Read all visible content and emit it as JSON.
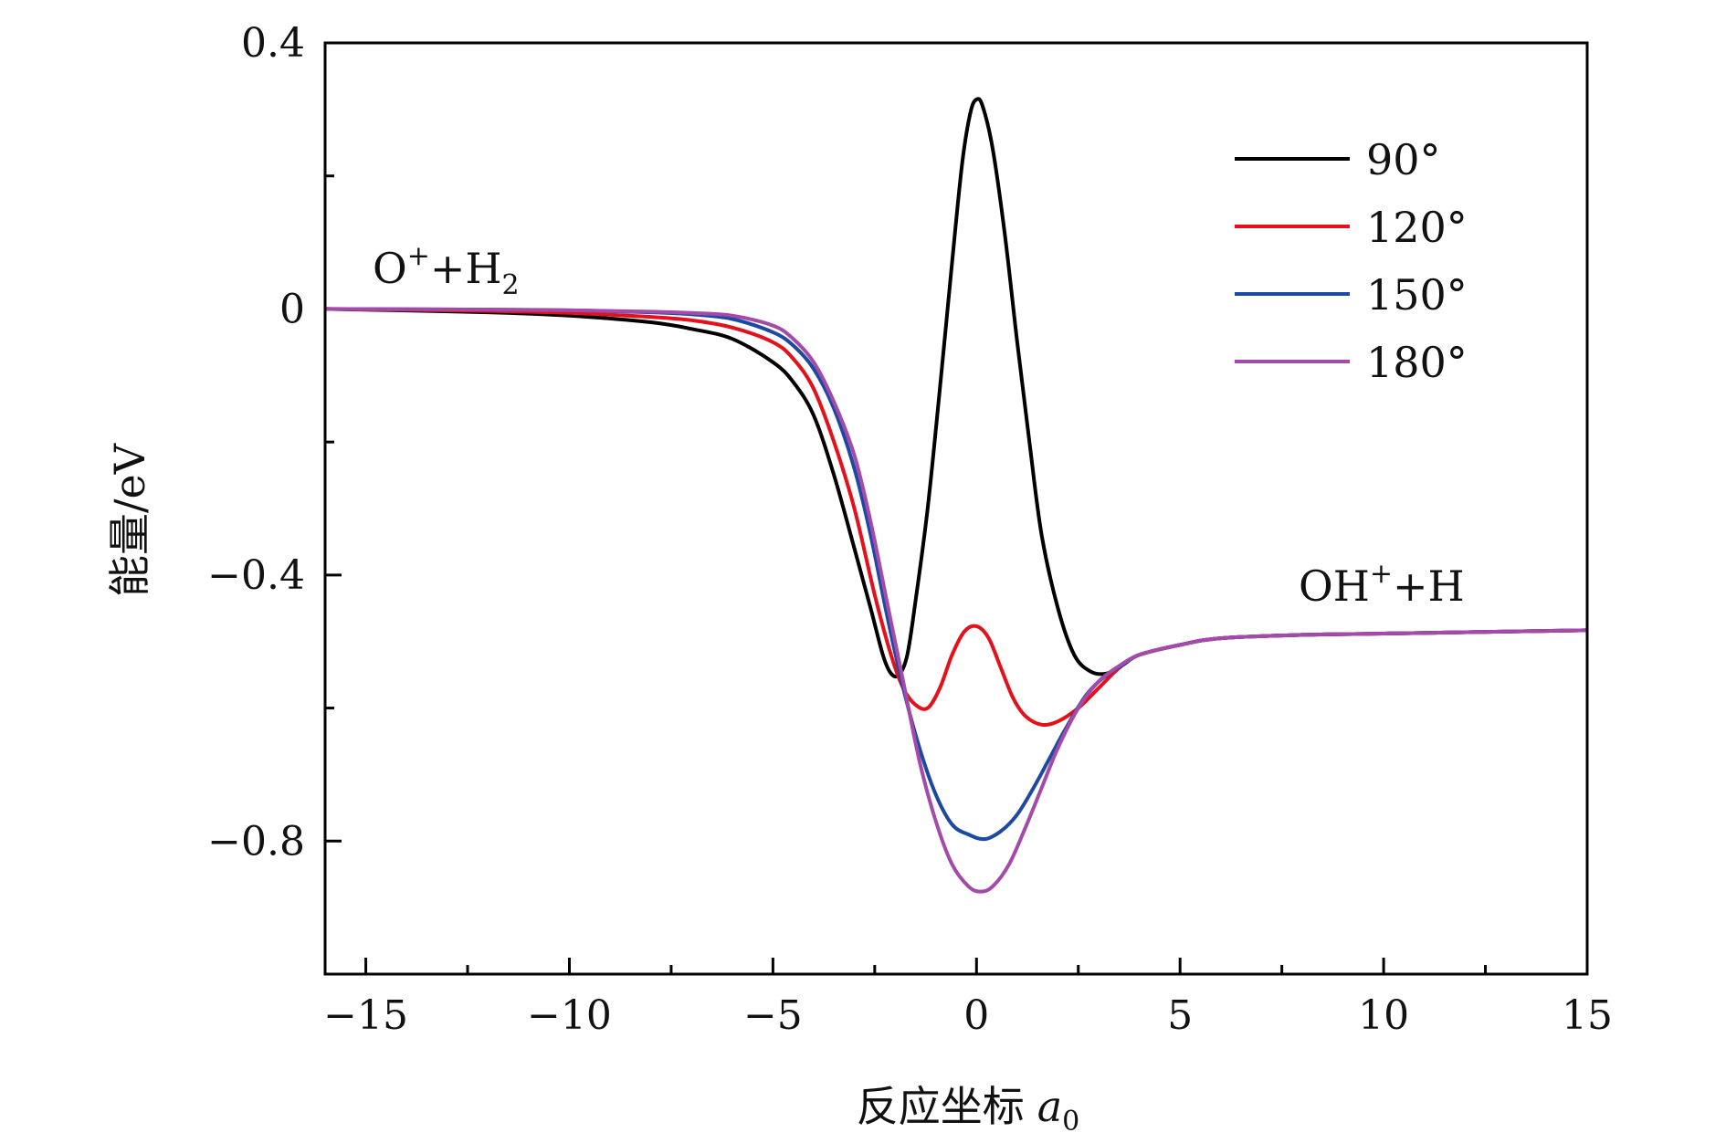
{
  "chart_data": {
    "type": "line",
    "xlabel": "反应坐标",
    "xlabel_unit": "a",
    "xlabel_unit_sub": "0",
    "ylabel": "能量/eV",
    "xlim": [
      -16,
      15
    ],
    "ylim": [
      -1.0,
      0.4
    ],
    "xticks": [
      -15,
      -10,
      -5,
      0,
      5,
      10,
      15
    ],
    "xtick_labels": [
      "−15",
      "−10",
      "−5",
      "0",
      "5",
      "10",
      "15"
    ],
    "yticks": [
      -0.8,
      -0.4,
      0,
      0.4
    ],
    "ytick_labels": [
      "−0.8",
      "−0.4",
      "0",
      "0.4"
    ],
    "grid": false,
    "legend_position": "top-right",
    "annotations": {
      "left": {
        "main": "O",
        "sup": "+",
        "mid": "+H",
        "sub": "2"
      },
      "right": {
        "main": "OH",
        "sup": "+",
        "mid": "+H"
      }
    },
    "series": [
      {
        "name": "90°",
        "color": "#000000",
        "points": [
          [
            -16,
            0
          ],
          [
            -12,
            -0.005
          ],
          [
            -10,
            -0.01
          ],
          [
            -8,
            -0.02
          ],
          [
            -7,
            -0.03
          ],
          [
            -6,
            -0.045
          ],
          [
            -5,
            -0.08
          ],
          [
            -4.5,
            -0.11
          ],
          [
            -4,
            -0.16
          ],
          [
            -3.5,
            -0.25
          ],
          [
            -3,
            -0.36
          ],
          [
            -2.6,
            -0.45
          ],
          [
            -2.3,
            -0.52
          ],
          [
            -2.1,
            -0.548
          ],
          [
            -1.9,
            -0.55
          ],
          [
            -1.7,
            -0.52
          ],
          [
            -1.5,
            -0.44
          ],
          [
            -1.2,
            -0.3
          ],
          [
            -0.9,
            -0.12
          ],
          [
            -0.6,
            0.07
          ],
          [
            -0.35,
            0.22
          ],
          [
            -0.15,
            0.295
          ],
          [
            0,
            0.315
          ],
          [
            0.15,
            0.305
          ],
          [
            0.4,
            0.24
          ],
          [
            0.7,
            0.11
          ],
          [
            1,
            -0.05
          ],
          [
            1.3,
            -0.2
          ],
          [
            1.6,
            -0.34
          ],
          [
            2,
            -0.45
          ],
          [
            2.4,
            -0.52
          ],
          [
            2.8,
            -0.545
          ],
          [
            3.2,
            -0.548
          ],
          [
            3.6,
            -0.535
          ],
          [
            4,
            -0.52
          ],
          [
            5,
            -0.505
          ],
          [
            6,
            -0.495
          ],
          [
            8,
            -0.49
          ],
          [
            10,
            -0.488
          ],
          [
            15,
            -0.483
          ]
        ]
      },
      {
        "name": "120°",
        "color": "#e4111b",
        "points": [
          [
            -16,
            0
          ],
          [
            -12,
            -0.003
          ],
          [
            -10,
            -0.006
          ],
          [
            -8,
            -0.012
          ],
          [
            -7,
            -0.017
          ],
          [
            -6,
            -0.028
          ],
          [
            -5,
            -0.05
          ],
          [
            -4.5,
            -0.075
          ],
          [
            -4,
            -0.12
          ],
          [
            -3.5,
            -0.2
          ],
          [
            -3,
            -0.3
          ],
          [
            -2.5,
            -0.43
          ],
          [
            -2.1,
            -0.52
          ],
          [
            -1.8,
            -0.57
          ],
          [
            -1.5,
            -0.595
          ],
          [
            -1.2,
            -0.6
          ],
          [
            -0.9,
            -0.57
          ],
          [
            -0.6,
            -0.52
          ],
          [
            -0.3,
            -0.485
          ],
          [
            0,
            -0.477
          ],
          [
            0.3,
            -0.495
          ],
          [
            0.6,
            -0.54
          ],
          [
            0.9,
            -0.585
          ],
          [
            1.2,
            -0.612
          ],
          [
            1.6,
            -0.625
          ],
          [
            2,
            -0.62
          ],
          [
            2.5,
            -0.6
          ],
          [
            3,
            -0.57
          ],
          [
            3.5,
            -0.54
          ],
          [
            4,
            -0.52
          ],
          [
            5,
            -0.505
          ],
          [
            6,
            -0.495
          ],
          [
            8,
            -0.49
          ],
          [
            10,
            -0.488
          ],
          [
            15,
            -0.483
          ]
        ]
      },
      {
        "name": "150°",
        "color": "#1e49a3",
        "points": [
          [
            -16,
            0
          ],
          [
            -12,
            -0.001
          ],
          [
            -10,
            -0.002
          ],
          [
            -8,
            -0.005
          ],
          [
            -7,
            -0.008
          ],
          [
            -6,
            -0.015
          ],
          [
            -5,
            -0.035
          ],
          [
            -4.5,
            -0.055
          ],
          [
            -4,
            -0.09
          ],
          [
            -3.5,
            -0.15
          ],
          [
            -3,
            -0.24
          ],
          [
            -2.6,
            -0.34
          ],
          [
            -2.2,
            -0.46
          ],
          [
            -1.8,
            -0.57
          ],
          [
            -1.4,
            -0.66
          ],
          [
            -1,
            -0.73
          ],
          [
            -0.6,
            -0.775
          ],
          [
            -0.2,
            -0.79
          ],
          [
            0.2,
            -0.797
          ],
          [
            0.6,
            -0.785
          ],
          [
            1,
            -0.76
          ],
          [
            1.4,
            -0.72
          ],
          [
            1.8,
            -0.675
          ],
          [
            2.2,
            -0.63
          ],
          [
            2.7,
            -0.58
          ],
          [
            3.2,
            -0.55
          ],
          [
            3.6,
            -0.535
          ],
          [
            4,
            -0.52
          ],
          [
            5,
            -0.505
          ],
          [
            6,
            -0.495
          ],
          [
            8,
            -0.49
          ],
          [
            10,
            -0.488
          ],
          [
            15,
            -0.483
          ]
        ]
      },
      {
        "name": "180°",
        "color": "#a44aa9",
        "points": [
          [
            -16,
            0
          ],
          [
            -12,
            -0.001
          ],
          [
            -10,
            -0.002
          ],
          [
            -8,
            -0.004
          ],
          [
            -7,
            -0.006
          ],
          [
            -6,
            -0.01
          ],
          [
            -5,
            -0.025
          ],
          [
            -4.5,
            -0.045
          ],
          [
            -4,
            -0.08
          ],
          [
            -3.5,
            -0.14
          ],
          [
            -3,
            -0.22
          ],
          [
            -2.6,
            -0.32
          ],
          [
            -2.2,
            -0.44
          ],
          [
            -1.8,
            -0.56
          ],
          [
            -1.4,
            -0.68
          ],
          [
            -1,
            -0.77
          ],
          [
            -0.6,
            -0.835
          ],
          [
            -0.2,
            -0.868
          ],
          [
            0.1,
            -0.876
          ],
          [
            0.4,
            -0.868
          ],
          [
            0.8,
            -0.835
          ],
          [
            1.2,
            -0.78
          ],
          [
            1.6,
            -0.72
          ],
          [
            2,
            -0.66
          ],
          [
            2.5,
            -0.6
          ],
          [
            3,
            -0.56
          ],
          [
            3.5,
            -0.537
          ],
          [
            4,
            -0.52
          ],
          [
            5,
            -0.505
          ],
          [
            6,
            -0.495
          ],
          [
            8,
            -0.49
          ],
          [
            10,
            -0.488
          ],
          [
            15,
            -0.483
          ]
        ]
      }
    ]
  }
}
